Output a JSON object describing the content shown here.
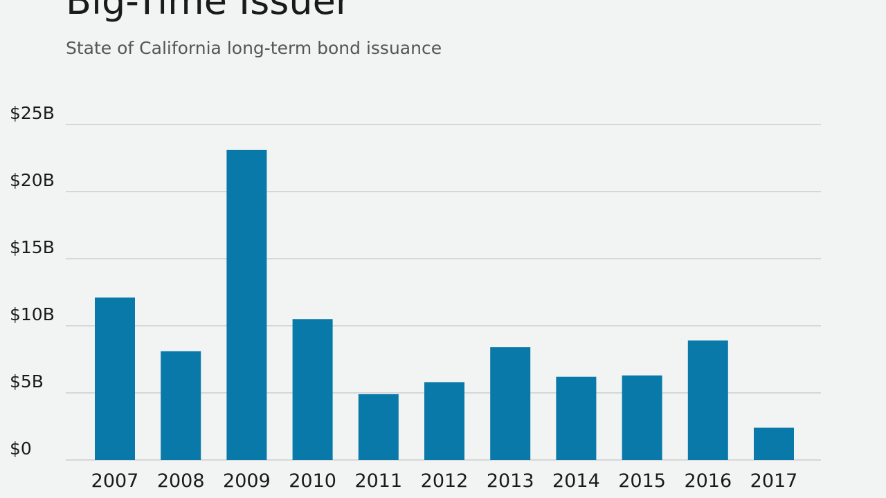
{
  "chart_data": {
    "type": "bar",
    "title": "Big-Time Issuer",
    "subtitle": "State of California long-term bond issuance",
    "xlabel": "",
    "ylabel": "",
    "categories": [
      "2007",
      "2008",
      "2009",
      "2010",
      "2011",
      "2012",
      "2013",
      "2014",
      "2015",
      "2016",
      "2017"
    ],
    "values": [
      12.1,
      8.1,
      23.1,
      10.5,
      4.9,
      5.8,
      8.4,
      6.2,
      6.3,
      8.9,
      2.4
    ],
    "ylim": [
      0,
      25
    ],
    "yticks": [
      0,
      5,
      10,
      15,
      20,
      25
    ],
    "ytick_labels": [
      "$0",
      "$5B",
      "$10B",
      "$15B",
      "$20B",
      "$25B"
    ],
    "grid": true,
    "legend": "none",
    "colors": {
      "bar": "#0879a8",
      "grid": "#c4c6c8",
      "background": "#f2f3f3"
    }
  }
}
